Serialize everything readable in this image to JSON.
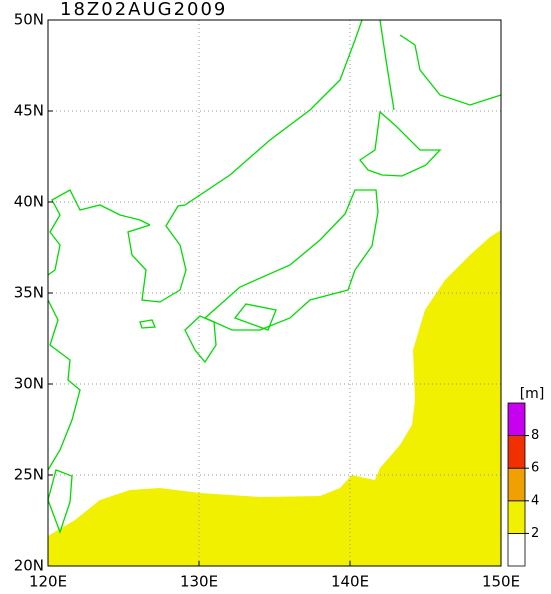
{
  "map": {
    "title": "18Z02AUG2009",
    "lon_ticks": [
      {
        "value": 120,
        "label": "120E"
      },
      {
        "value": 130,
        "label": "130E"
      },
      {
        "value": 140,
        "label": "140E"
      },
      {
        "value": 150,
        "label": "150E"
      }
    ],
    "lat_ticks": [
      {
        "value": 20,
        "label": "20N"
      },
      {
        "value": 25,
        "label": "25N"
      },
      {
        "value": 30,
        "label": "30N"
      },
      {
        "value": 35,
        "label": "35N"
      },
      {
        "value": 40,
        "label": "40N"
      },
      {
        "value": 45,
        "label": "45N"
      },
      {
        "value": 50,
        "label": "50N"
      }
    ],
    "colorbar": {
      "unit": "[m]",
      "levels": [
        2,
        4,
        6,
        8
      ],
      "colors": [
        "#ffffff",
        "#f0f000",
        "#f0a000",
        "#f03000",
        "#c800f0"
      ]
    }
  }
}
